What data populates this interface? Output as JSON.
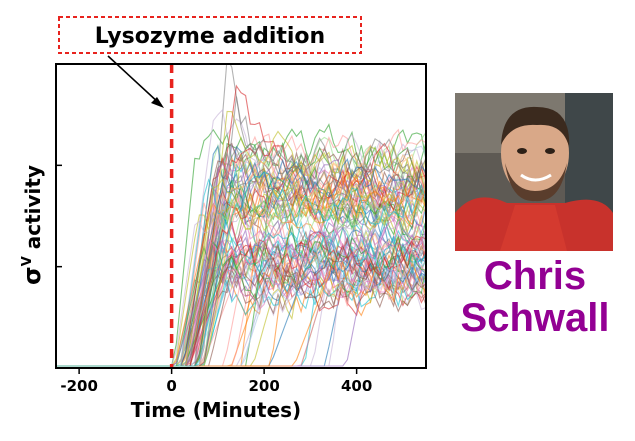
{
  "colors": {
    "annotation": "#e8231e",
    "name": "#930093",
    "axis": "#000000"
  },
  "annotation": {
    "text": "Lysozyme addition"
  },
  "person": {
    "first_name": "Chris",
    "last_name": "Schwall",
    "photo_icon": "person-photo"
  },
  "chart_data": {
    "type": "line",
    "title": "",
    "xlabel": "Time (Minutes)",
    "ylabel": "σᵛ activity",
    "ylabel_main": "σ",
    "ylabel_sup": "V",
    "ylabel_rest": " activity",
    "xlim": [
      -250,
      550
    ],
    "ylim": [
      0,
      3
    ],
    "xticks": [
      -200,
      0,
      200,
      400
    ],
    "xtick_labels": [
      "-200",
      "0",
      "200",
      "400"
    ],
    "yticks": [
      1,
      2
    ],
    "grid": false,
    "vline": {
      "x": 0,
      "style": "dashed",
      "color": "#e8231e"
    },
    "n_series": 100,
    "series_summary": {
      "baseline_level": 0.02,
      "onset_range": [
        0,
        400
      ],
      "plateau_range": [
        0.7,
        2.1
      ],
      "peak_max": 3.0,
      "peak_time": 150
    }
  }
}
